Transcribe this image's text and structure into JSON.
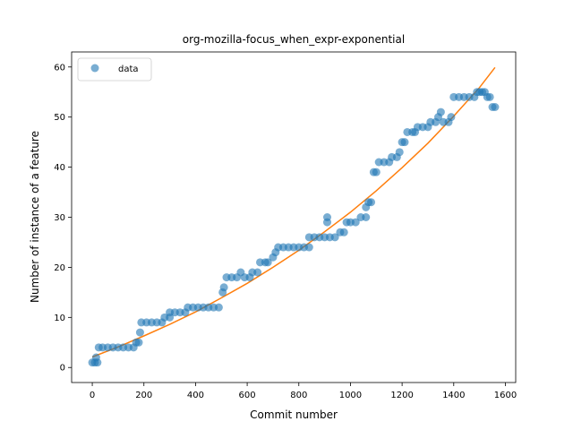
{
  "chart_data": {
    "type": "scatter",
    "title": "org-mozilla-focus_when_expr-exponential",
    "xlabel": "Commit number",
    "ylabel": "Number of instance of a feature",
    "xlim": [
      -80,
      1640
    ],
    "ylim": [
      -3,
      63
    ],
    "xticks": [
      0,
      200,
      400,
      600,
      800,
      1000,
      1200,
      1400,
      1600
    ],
    "yticks": [
      0,
      10,
      20,
      30,
      40,
      50,
      60
    ],
    "grid": false,
    "legend": {
      "position": "top-left",
      "entries": [
        "data"
      ]
    },
    "colors": {
      "data": "#1f77b4",
      "fit": "#ff7f0e"
    },
    "series": [
      {
        "name": "data",
        "kind": "scatter",
        "points": [
          [
            0,
            1
          ],
          [
            10,
            1
          ],
          [
            20,
            1
          ],
          [
            15,
            2
          ],
          [
            25,
            4
          ],
          [
            40,
            4
          ],
          [
            60,
            4
          ],
          [
            80,
            4
          ],
          [
            100,
            4
          ],
          [
            120,
            4
          ],
          [
            140,
            4
          ],
          [
            160,
            4
          ],
          [
            170,
            5
          ],
          [
            180,
            5
          ],
          [
            185,
            7
          ],
          [
            190,
            9
          ],
          [
            210,
            9
          ],
          [
            230,
            9
          ],
          [
            250,
            9
          ],
          [
            270,
            9
          ],
          [
            280,
            10
          ],
          [
            300,
            10
          ],
          [
            300,
            11
          ],
          [
            320,
            11
          ],
          [
            340,
            11
          ],
          [
            360,
            11
          ],
          [
            370,
            12
          ],
          [
            390,
            12
          ],
          [
            410,
            12
          ],
          [
            430,
            12
          ],
          [
            450,
            12
          ],
          [
            470,
            12
          ],
          [
            490,
            12
          ],
          [
            505,
            15
          ],
          [
            510,
            16
          ],
          [
            520,
            18
          ],
          [
            540,
            18
          ],
          [
            560,
            18
          ],
          [
            575,
            19
          ],
          [
            590,
            18
          ],
          [
            610,
            18
          ],
          [
            620,
            19
          ],
          [
            640,
            19
          ],
          [
            650,
            21
          ],
          [
            670,
            21
          ],
          [
            680,
            21
          ],
          [
            700,
            22
          ],
          [
            710,
            23
          ],
          [
            720,
            24
          ],
          [
            740,
            24
          ],
          [
            760,
            24
          ],
          [
            780,
            24
          ],
          [
            800,
            24
          ],
          [
            820,
            24
          ],
          [
            840,
            24
          ],
          [
            840,
            26
          ],
          [
            860,
            26
          ],
          [
            880,
            26
          ],
          [
            900,
            26
          ],
          [
            910,
            29
          ],
          [
            910,
            30
          ],
          [
            920,
            26
          ],
          [
            940,
            26
          ],
          [
            960,
            27
          ],
          [
            975,
            27
          ],
          [
            985,
            29
          ],
          [
            1000,
            29
          ],
          [
            1020,
            29
          ],
          [
            1040,
            30
          ],
          [
            1060,
            30
          ],
          [
            1060,
            32
          ],
          [
            1070,
            33
          ],
          [
            1080,
            33
          ],
          [
            1090,
            39
          ],
          [
            1100,
            39
          ],
          [
            1110,
            41
          ],
          [
            1130,
            41
          ],
          [
            1150,
            41
          ],
          [
            1160,
            42
          ],
          [
            1180,
            42
          ],
          [
            1190,
            43
          ],
          [
            1200,
            45
          ],
          [
            1210,
            45
          ],
          [
            1220,
            47
          ],
          [
            1240,
            47
          ],
          [
            1250,
            47
          ],
          [
            1260,
            48
          ],
          [
            1280,
            48
          ],
          [
            1300,
            48
          ],
          [
            1310,
            49
          ],
          [
            1330,
            49
          ],
          [
            1340,
            50
          ],
          [
            1350,
            51
          ],
          [
            1360,
            49
          ],
          [
            1380,
            49
          ],
          [
            1390,
            50
          ],
          [
            1400,
            54
          ],
          [
            1420,
            54
          ],
          [
            1440,
            54
          ],
          [
            1460,
            54
          ],
          [
            1480,
            54
          ],
          [
            1490,
            55
          ],
          [
            1500,
            55
          ],
          [
            1510,
            55
          ],
          [
            1520,
            55
          ],
          [
            1530,
            54
          ],
          [
            1540,
            54
          ],
          [
            1550,
            52
          ],
          [
            1560,
            52
          ]
        ]
      },
      {
        "name": "",
        "kind": "line",
        "points": [
          [
            0,
            2.1
          ],
          [
            100,
            4.1
          ],
          [
            200,
            6.3
          ],
          [
            300,
            8.6
          ],
          [
            400,
            11.1
          ],
          [
            500,
            13.9
          ],
          [
            600,
            16.8
          ],
          [
            700,
            20.0
          ],
          [
            800,
            23.4
          ],
          [
            900,
            27.1
          ],
          [
            1000,
            31.0
          ],
          [
            1100,
            35.3
          ],
          [
            1200,
            39.9
          ],
          [
            1300,
            44.8
          ],
          [
            1400,
            50.2
          ],
          [
            1500,
            55.9
          ],
          [
            1560,
            59.9
          ]
        ]
      }
    ]
  }
}
